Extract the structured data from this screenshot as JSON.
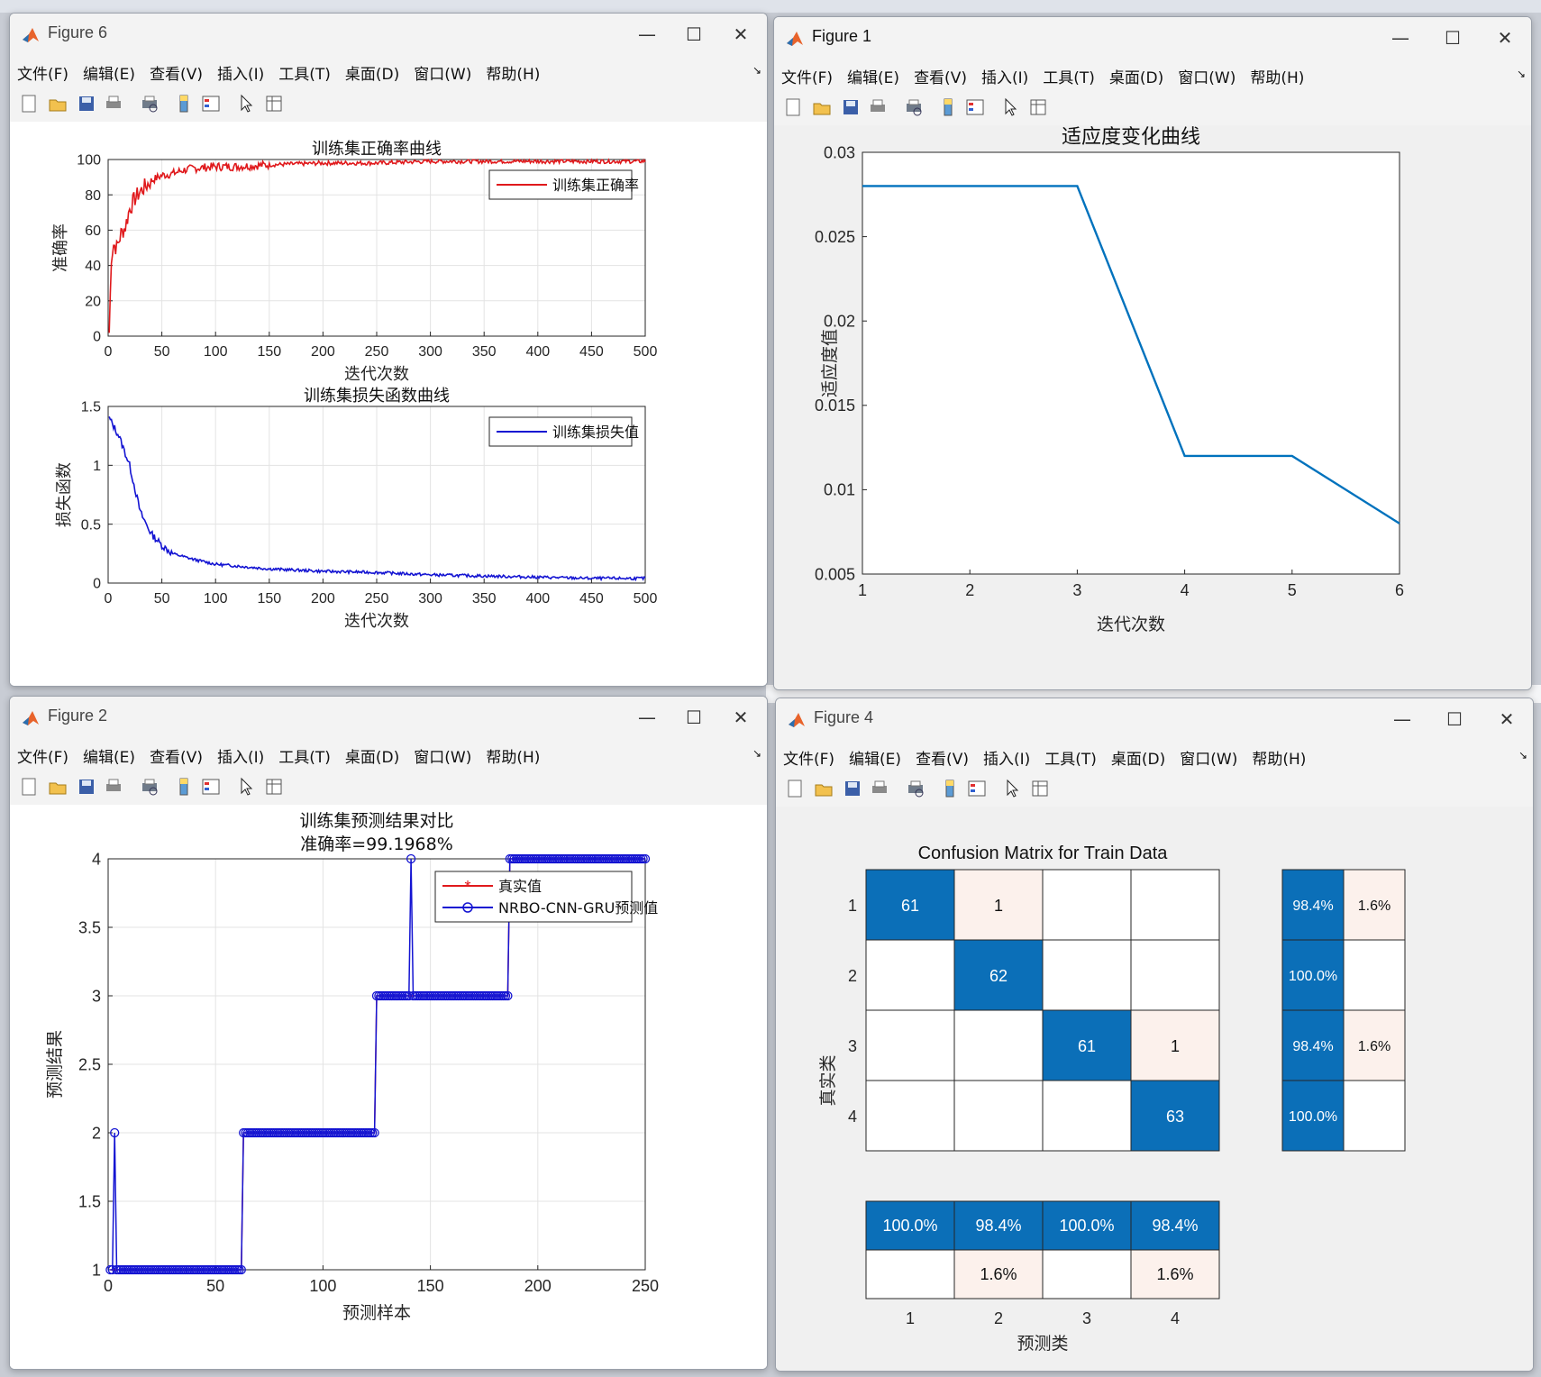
{
  "menus": [
    "文件(F)",
    "编辑(E)",
    "查看(V)",
    "插入(I)",
    "工具(T)",
    "桌面(D)",
    "窗口(W)",
    "帮助(H)"
  ],
  "windows": {
    "fig6": {
      "title": "Figure 6"
    },
    "fig1": {
      "title": "Figure 1"
    },
    "fig2": {
      "title": "Figure 2"
    },
    "fig4": {
      "title": "Figure 4"
    }
  },
  "controls": {
    "minimize": "—",
    "maximize": "☐",
    "close": "✕"
  },
  "colors": {
    "red": "#e0191c",
    "blue": "#1414d2",
    "matlab_blue": "#0072bd",
    "cm_dark": "#0b6fb8",
    "cm_light": "#fcf1ec"
  },
  "chart_data": [
    {
      "id": "train-accuracy",
      "type": "line",
      "title": "训练集正确率曲线",
      "xlabel": "迭代次数",
      "ylabel": "准确率",
      "xlim": [
        0,
        500
      ],
      "ylim": [
        0,
        100
      ],
      "xticks": [
        0,
        50,
        100,
        150,
        200,
        250,
        300,
        350,
        400,
        450,
        500
      ],
      "yticks": [
        0,
        20,
        40,
        60,
        80,
        100
      ],
      "grid": true,
      "legend_position": "top-right",
      "series": [
        {
          "name": "训练集正确率",
          "x": [
            1,
            3,
            5,
            8,
            12,
            16,
            20,
            25,
            30,
            40,
            50,
            60,
            70,
            80,
            100,
            120,
            150,
            200,
            250,
            300,
            350,
            400,
            450,
            500
          ],
          "y": [
            2,
            45,
            52,
            50,
            58,
            62,
            72,
            78,
            82,
            88,
            91,
            92,
            94,
            95,
            96,
            96,
            97,
            98,
            98,
            99,
            99,
            99,
            99,
            99
          ]
        }
      ]
    },
    {
      "id": "train-loss",
      "type": "line",
      "title": "训练集损失函数曲线",
      "xlabel": "迭代次数",
      "ylabel": "损失函数",
      "xlim": [
        0,
        500
      ],
      "ylim": [
        0,
        1.5
      ],
      "xticks": [
        0,
        50,
        100,
        150,
        200,
        250,
        300,
        350,
        400,
        450,
        500
      ],
      "yticks": [
        0,
        0.5,
        1,
        1.5
      ],
      "grid": true,
      "legend_position": "top-right",
      "series": [
        {
          "name": "训练集损失值",
          "x": [
            1,
            10,
            20,
            30,
            40,
            50,
            60,
            80,
            100,
            150,
            200,
            250,
            300,
            350,
            400,
            450,
            500
          ],
          "y": [
            1.4,
            1.25,
            1.0,
            0.6,
            0.42,
            0.32,
            0.25,
            0.2,
            0.16,
            0.12,
            0.1,
            0.09,
            0.07,
            0.06,
            0.05,
            0.04,
            0.04
          ]
        }
      ]
    },
    {
      "id": "fitness",
      "type": "line",
      "title": "适应度变化曲线",
      "xlabel": "迭代次数",
      "ylabel": "适应度值",
      "xlim": [
        1,
        6
      ],
      "ylim": [
        0.005,
        0.03
      ],
      "xticks": [
        1,
        2,
        3,
        4,
        5,
        6
      ],
      "yticks": [
        0.005,
        0.01,
        0.015,
        0.02,
        0.025,
        0.03
      ],
      "grid": false,
      "series": [
        {
          "x": [
            1,
            2,
            3,
            4,
            5,
            6
          ],
          "y": [
            0.028,
            0.028,
            0.028,
            0.012,
            0.012,
            0.008
          ]
        }
      ]
    },
    {
      "id": "prediction",
      "type": "line",
      "title": "训练集预测结果对比",
      "subtitle": "准确率=99.1968%",
      "xlabel": "预测样本",
      "ylabel": "预测结果",
      "xlim": [
        0,
        250
      ],
      "ylim": [
        1,
        4
      ],
      "xticks": [
        0,
        50,
        100,
        150,
        200,
        250
      ],
      "yticks": [
        1,
        1.5,
        2,
        2.5,
        3,
        3.5,
        4
      ],
      "grid": true,
      "legend_position": "top-right",
      "segments": [
        [
          1,
          62,
          1
        ],
        [
          63,
          124,
          2
        ],
        [
          125,
          186,
          3
        ],
        [
          187,
          250,
          4
        ]
      ],
      "anomalies": [
        [
          3,
          2
        ],
        [
          141,
          4
        ]
      ],
      "series": [
        {
          "name": "真实值"
        },
        {
          "name": "NRBO-CNN-GRU预测值"
        }
      ]
    },
    {
      "id": "confusion",
      "type": "heatmap",
      "title": "Confusion Matrix for Train Data",
      "xlabel": "预测类",
      "ylabel": "真实类",
      "classes": [
        "1",
        "2",
        "3",
        "4"
      ],
      "matrix": [
        [
          61,
          1,
          0,
          0
        ],
        [
          0,
          62,
          0,
          0
        ],
        [
          0,
          0,
          61,
          1
        ],
        [
          0,
          0,
          0,
          63
        ]
      ],
      "row_summary": [
        [
          "98.4%",
          "1.6%"
        ],
        [
          "100.0%",
          ""
        ],
        [
          "98.4%",
          "1.6%"
        ],
        [
          "100.0%",
          ""
        ]
      ],
      "col_summary": [
        [
          "100.0%",
          "98.4%",
          "100.0%",
          "98.4%"
        ],
        [
          "",
          "1.6%",
          "",
          "1.6%"
        ]
      ]
    }
  ]
}
